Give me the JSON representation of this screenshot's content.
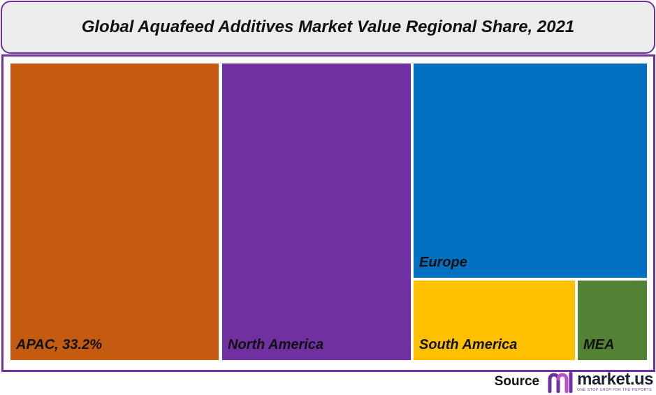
{
  "chart_data": {
    "type": "treemap",
    "title": "Global Aquafeed Additives Market Value Regional Share, 2021",
    "tiles": [
      {
        "label": "APAC, 33.2%",
        "region": "APAC",
        "share": 33.2,
        "color": "#c55a11"
      },
      {
        "label": "North America",
        "region": "North America",
        "color": "#7030a0"
      },
      {
        "label": "Europe",
        "region": "Europe",
        "color": "#0070c0"
      },
      {
        "label": "South America",
        "region": "South America",
        "color": "#ffc000"
      },
      {
        "label": "MEA",
        "region": "MEA",
        "color": "#548235"
      }
    ]
  },
  "footer": {
    "source_label": "Source",
    "logo_text": "market.us",
    "logo_tagline": "ONE STOP SHOP FOR THE REPORTS"
  }
}
